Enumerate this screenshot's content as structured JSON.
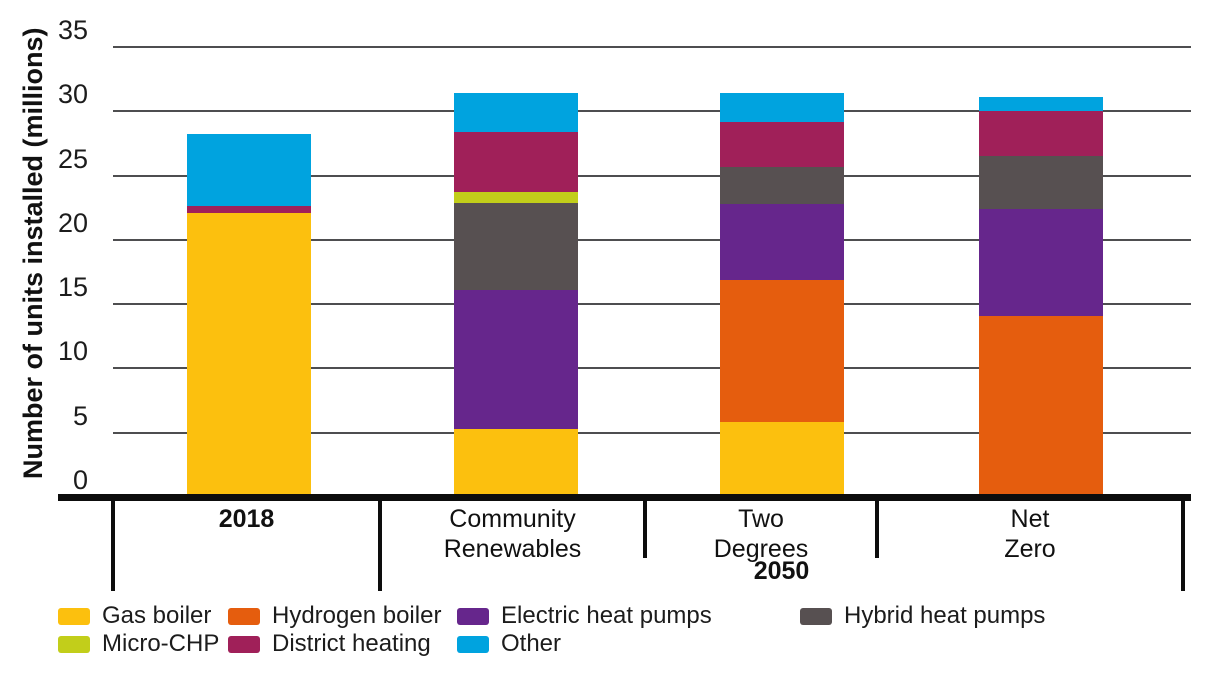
{
  "figure": {
    "y_axis_title": "Number of units installed (millions)"
  },
  "chart_data": {
    "type": "bar",
    "stacked": true,
    "title": "",
    "xlabel": "",
    "ylabel": "Number of units installed (millions)",
    "ylim": [
      0,
      35
    ],
    "yticks": [
      0,
      5,
      10,
      15,
      20,
      25,
      30,
      35
    ],
    "grid": "horizontal",
    "legend_position": "bottom",
    "categories": [
      "2018",
      "Community Renewables",
      "Two Degrees",
      "Net Zero"
    ],
    "category_label_lines": [
      [
        "2018"
      ],
      [
        "Community",
        "Renewables"
      ],
      [
        "Two",
        "Degrees"
      ],
      [
        "Net",
        "Zero"
      ]
    ],
    "category_group": {
      "label": "2050",
      "members": [
        "Community Renewables",
        "Two Degrees",
        "Net Zero"
      ]
    },
    "series": [
      {
        "name": "Gas boiler",
        "color": "#FCC00E",
        "values": [
          22.1,
          5.3,
          5.8,
          0
        ]
      },
      {
        "name": "Hydrogen boiler",
        "color": "#E55D0E",
        "values": [
          0,
          0,
          11.1,
          14.1
        ]
      },
      {
        "name": "Electric heat pumps",
        "color": "#66268C",
        "values": [
          0,
          10.8,
          5.9,
          8.3
        ]
      },
      {
        "name": "Hybrid heat pumps",
        "color": "#575051",
        "values": [
          0,
          6.8,
          2.9,
          4.1
        ]
      },
      {
        "name": "Micro-CHP",
        "color": "#C2CE1A",
        "values": [
          0,
          0.8,
          0,
          0
        ]
      },
      {
        "name": "District heating",
        "color": "#A02059",
        "values": [
          0.55,
          4.7,
          3.5,
          3.5
        ]
      },
      {
        "name": "Other",
        "color": "#00A3DF",
        "values": [
          5.55,
          3.0,
          2.2,
          1.1
        ]
      }
    ],
    "totals": [
      28.2,
      31.4,
      31.4,
      31.1
    ],
    "legend_rows": [
      [
        "Gas boiler",
        "Hydrogen boiler",
        "Electric heat pumps",
        "Hybrid heat pumps"
      ],
      [
        "Micro-CHP",
        "District heating",
        "Other"
      ]
    ]
  },
  "colors": {
    "grid": "#4e4e50",
    "axis": "#0d0d0d",
    "text": "#1c1c1c"
  }
}
